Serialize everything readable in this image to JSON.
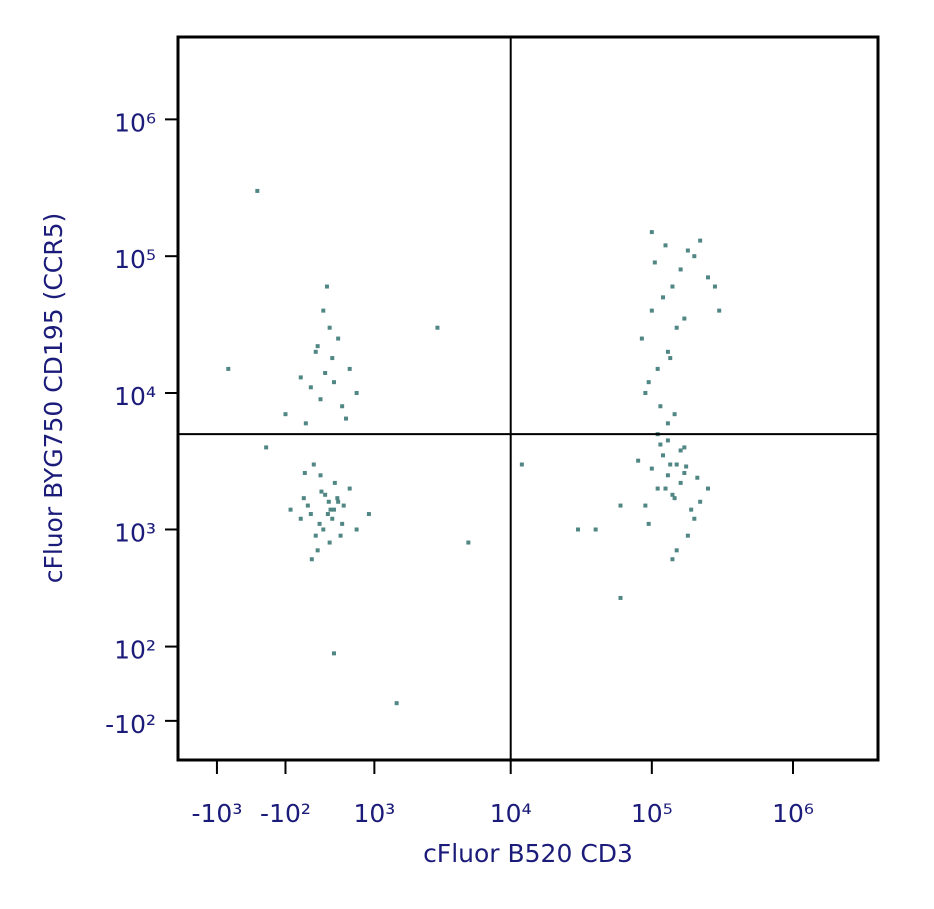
{
  "chart_data": {
    "type": "scatter",
    "x_label": "cFluor B520 CD3",
    "y_label": "cFluor BYG750 CD195 (CCR5)",
    "xscale": "logicle",
    "yscale": "logicle",
    "color": "#508684",
    "xlim": [
      -2000,
      4000000
    ],
    "ylim": [
      -250,
      4000000
    ],
    "xticks": [
      {
        "value": -1000,
        "label": "-10³"
      },
      {
        "value": -100,
        "label": "-10²"
      },
      {
        "value": 1000,
        "label": "10³"
      },
      {
        "value": 10000,
        "label": "10⁴"
      },
      {
        "value": 100000,
        "label": "10⁵"
      },
      {
        "value": 1000000,
        "label": "10⁶"
      }
    ],
    "yticks": [
      {
        "value": -100,
        "label": "-10²"
      },
      {
        "value": 100,
        "label": "10²"
      },
      {
        "value": 1000,
        "label": "10³"
      },
      {
        "value": 10000,
        "label": "10⁴"
      },
      {
        "value": 100000,
        "label": "10⁵"
      },
      {
        "value": 1000000,
        "label": "10⁶"
      }
    ],
    "quadrant": {
      "x": 10000,
      "y": 5000
    },
    "x": [
      50,
      120,
      200,
      300,
      400,
      500,
      600,
      150,
      250,
      350,
      450,
      700,
      80,
      -50,
      220,
      330,
      410,
      520,
      180,
      280,
      380,
      480,
      260,
      340,
      90,
      160,
      240,
      360,
      440,
      900,
      100,
      250,
      400,
      600,
      200,
      350,
      500,
      150,
      300,
      450,
      -100,
      700,
      280,
      380,
      50,
      550,
      320,
      220,
      90000,
      110000,
      130000,
      150000,
      170000,
      200000,
      120000,
      140000,
      160000,
      100000,
      180000,
      220000,
      80000,
      130000,
      150000,
      110000,
      170000,
      190000,
      140000,
      125000,
      160000,
      95000,
      210000,
      135000,
      145000,
      115000,
      175000,
      60000,
      250000,
      40000,
      90000,
      110000,
      130000,
      150000,
      100000,
      120000,
      140000,
      160000,
      200000,
      250000,
      300000,
      85000,
      105000,
      125000,
      180000,
      220000,
      95000,
      135000,
      115000,
      170000,
      280000,
      145000,
      100000,
      130000,
      -800,
      30000,
      3000,
      5000,
      -300,
      400,
      60000,
      1500,
      12000,
      -400
    ],
    "values": [
      1200,
      1500,
      900,
      1800,
      1400,
      1100,
      2000,
      1300,
      2500,
      800,
      1600,
      1000,
      1700,
      1400,
      700,
      1300,
      2200,
      1500,
      3000,
      1000,
      1200,
      900,
      1900,
      1600,
      2600,
      600,
      1100,
      1400,
      1700,
      1300,
      6000,
      9000,
      12000,
      15000,
      20000,
      30000,
      8000,
      11000,
      14000,
      25000,
      7000,
      10000,
      40000,
      18000,
      13000,
      6500,
      60000,
      22000,
      1500,
      2000,
      2500,
      3000,
      4000,
      1200,
      3500,
      1800,
      2200,
      2800,
      900,
      1600,
      3200,
      4500,
      700,
      5000,
      2600,
      1400,
      600,
      2000,
      3800,
      1100,
      2400,
      3000,
      1700,
      4200,
      2900,
      1500,
      2000,
      1000,
      10000,
      15000,
      20000,
      30000,
      40000,
      50000,
      60000,
      80000,
      100000,
      70000,
      40000,
      25000,
      90000,
      120000,
      110000,
      130000,
      12000,
      18000,
      8000,
      35000,
      60000,
      7000,
      150000,
      6000,
      15000,
      1000,
      30000,
      800,
      4000,
      80,
      300,
      -50,
      3000,
      300000
    ]
  }
}
